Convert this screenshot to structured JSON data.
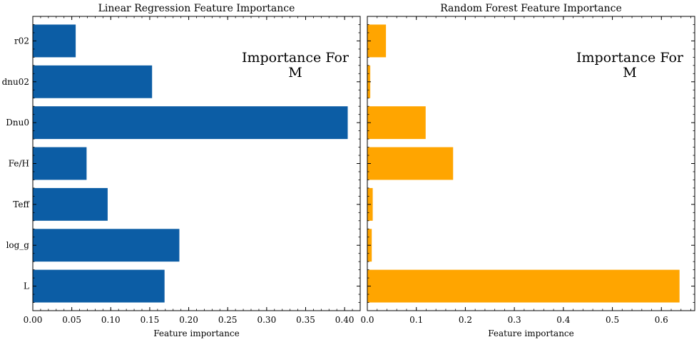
{
  "chart_data": [
    {
      "type": "bar",
      "orientation": "horizontal",
      "title": "Linear Regression Feature Importance",
      "xlabel": "Feature importance",
      "ylabel": "",
      "categories": [
        "L",
        "log_g",
        "Teff",
        "Fe/H",
        "Dnu0",
        "dnu02",
        "r02"
      ],
      "values": [
        0.169,
        0.188,
        0.096,
        0.069,
        0.404,
        0.153,
        0.055
      ],
      "xlim": [
        0.0,
        0.42
      ],
      "xticks": [
        "0.00",
        "0.05",
        "0.10",
        "0.15",
        "0.20",
        "0.25",
        "0.30",
        "0.35",
        "0.40"
      ],
      "color": "#0c5da5",
      "annotation": [
        "Importance For",
        "M"
      ],
      "grid": false
    },
    {
      "type": "bar",
      "orientation": "horizontal",
      "title": "Random Forest Feature Importance",
      "xlabel": "Feature importance",
      "ylabel": "",
      "categories": [
        "L",
        "log_g",
        "Teff",
        "Fe/H",
        "Dnu0",
        "dnu02",
        "r02"
      ],
      "values": [
        0.637,
        0.009,
        0.011,
        0.175,
        0.119,
        0.006,
        0.038
      ],
      "xlim": [
        0.0,
        0.668
      ],
      "xticks": [
        "0.0",
        "0.1",
        "0.2",
        "0.3",
        "0.4",
        "0.5",
        "0.6"
      ],
      "color": "#ffa500",
      "annotation": [
        "Importance For",
        "M"
      ],
      "grid": false
    }
  ]
}
